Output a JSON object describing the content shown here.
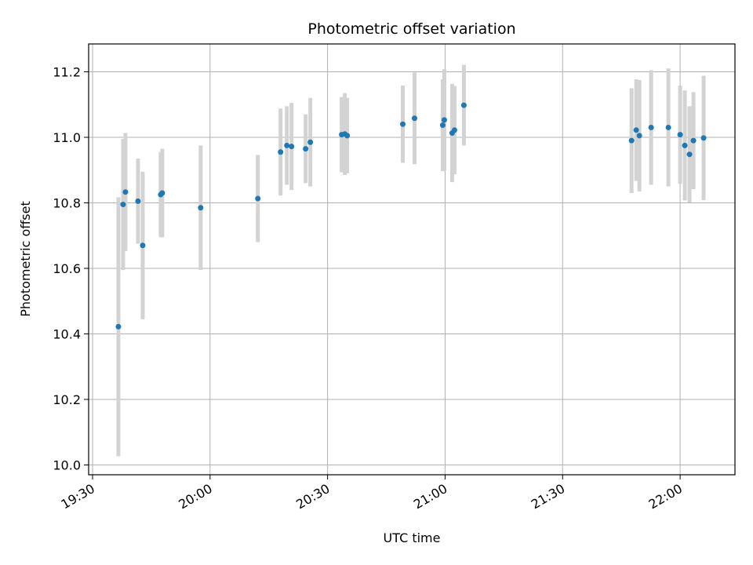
{
  "chart_data": {
    "type": "scatter",
    "title": "Photometric offset variation",
    "xlabel": "UTC time",
    "ylabel": "Photometric offset",
    "x_tick_labels": [
      "19:30",
      "20:00",
      "20:30",
      "21:00",
      "21:30",
      "22:00"
    ],
    "x_ticks": [
      "19:30",
      "20:00",
      "20:30",
      "21:00",
      "21:30",
      "22:00"
    ],
    "xlim": [
      "19:29",
      "22:14"
    ],
    "y_ticks": [
      10.0,
      10.2,
      10.4,
      10.6,
      10.8,
      11.0,
      11.2
    ],
    "y_tick_labels": [
      "10.0",
      "10.2",
      "10.4",
      "10.6",
      "10.8",
      "11.0",
      "11.2"
    ],
    "ylim": [
      9.97,
      11.285
    ],
    "grid": true,
    "colors": {
      "marker": "#1f77b4",
      "error_bar": "#d3d3d3",
      "grid": "#b0b0b0"
    },
    "points": [
      {
        "x": "19:36:36",
        "y": 10.422,
        "err": 0.395
      },
      {
        "x": "19:37:48",
        "y": 10.795,
        "err": 0.2
      },
      {
        "x": "19:38:24",
        "y": 10.833,
        "err": 0.18
      },
      {
        "x": "19:41:36",
        "y": 10.805,
        "err": 0.13
      },
      {
        "x": "19:42:48",
        "y": 10.67,
        "err": 0.225
      },
      {
        "x": "19:47:24",
        "y": 10.825,
        "err": 0.13
      },
      {
        "x": "19:47:48",
        "y": 10.83,
        "err": 0.135
      },
      {
        "x": "19:57:36",
        "y": 10.785,
        "err": 0.19
      },
      {
        "x": "20:12:12",
        "y": 10.813,
        "err": 0.133
      },
      {
        "x": "20:18:00",
        "y": 10.955,
        "err": 0.133
      },
      {
        "x": "20:19:36",
        "y": 10.975,
        "err": 0.12
      },
      {
        "x": "20:20:48",
        "y": 10.972,
        "err": 0.133
      },
      {
        "x": "20:24:24",
        "y": 10.965,
        "err": 0.105
      },
      {
        "x": "20:25:36",
        "y": 10.985,
        "err": 0.135
      },
      {
        "x": "20:33:36",
        "y": 11.008,
        "err": 0.115
      },
      {
        "x": "20:34:24",
        "y": 11.01,
        "err": 0.125
      },
      {
        "x": "20:35:00",
        "y": 11.005,
        "err": 0.115
      },
      {
        "x": "20:49:12",
        "y": 11.04,
        "err": 0.118
      },
      {
        "x": "20:52:12",
        "y": 11.058,
        "err": 0.14
      },
      {
        "x": "20:59:24",
        "y": 11.037,
        "err": 0.14
      },
      {
        "x": "20:59:48",
        "y": 11.053,
        "err": 0.155
      },
      {
        "x": "21:01:48",
        "y": 11.013,
        "err": 0.15
      },
      {
        "x": "21:02:24",
        "y": 11.022,
        "err": 0.135
      },
      {
        "x": "21:04:48",
        "y": 11.098,
        "err": 0.123
      },
      {
        "x": "21:47:36",
        "y": 10.99,
        "err": 0.16
      },
      {
        "x": "21:48:48",
        "y": 11.022,
        "err": 0.155
      },
      {
        "x": "21:49:36",
        "y": 11.005,
        "err": 0.17
      },
      {
        "x": "21:52:36",
        "y": 11.03,
        "err": 0.175
      },
      {
        "x": "21:57:00",
        "y": 11.03,
        "err": 0.18
      },
      {
        "x": "22:00:00",
        "y": 11.008,
        "err": 0.15
      },
      {
        "x": "22:01:12",
        "y": 10.975,
        "err": 0.168
      },
      {
        "x": "22:02:24",
        "y": 10.948,
        "err": 0.147
      },
      {
        "x": "22:03:24",
        "y": 10.99,
        "err": 0.148
      },
      {
        "x": "22:06:00",
        "y": 10.998,
        "err": 0.19
      }
    ]
  }
}
